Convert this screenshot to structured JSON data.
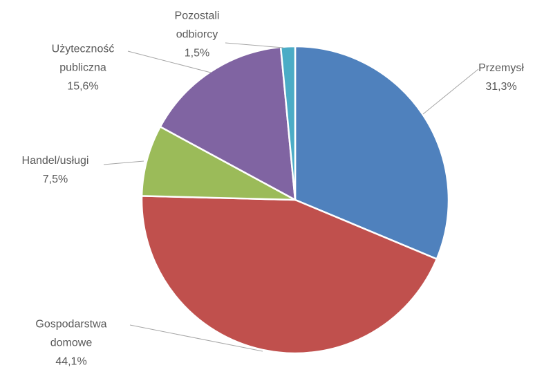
{
  "chart_data": {
    "type": "pie",
    "categories": [
      "Przemysł",
      "Gospodarstwa domowe",
      "Handel/usługi",
      "Użyteczność publiczna",
      "Pozostali odbiorcy"
    ],
    "values": [
      31.3,
      44.1,
      7.5,
      15.6,
      1.5
    ],
    "value_labels": [
      "31,3%",
      "44,1%",
      "7,5%",
      "15,6%",
      "1,5%"
    ],
    "colors": [
      "#4f81bd",
      "#c0504d",
      "#9bbb59",
      "#8064a2",
      "#4bacc6"
    ]
  }
}
